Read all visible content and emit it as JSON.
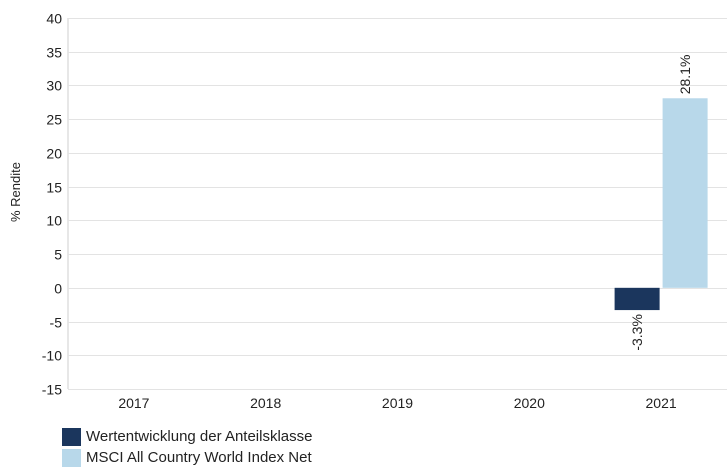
{
  "chart_data": {
    "type": "bar",
    "categories": [
      "2017",
      "2018",
      "2019",
      "2020",
      "2021"
    ],
    "series": [
      {
        "name": "Wertentwicklung der Anteilsklasse",
        "color": "#1b365d",
        "values": [
          null,
          null,
          null,
          null,
          -3.3
        ],
        "labels": [
          "",
          "",
          "",
          "",
          "-3.3%"
        ]
      },
      {
        "name": "MSCI All Country World Index Net",
        "color": "#b8d8ea",
        "values": [
          null,
          null,
          null,
          null,
          28.1
        ],
        "labels": [
          "",
          "",
          "",
          "",
          "28.1%"
        ]
      }
    ],
    "ylabel": "% Rendite",
    "ylim": [
      -15,
      40
    ],
    "yticks": [
      40,
      35,
      30,
      25,
      20,
      15,
      10,
      5,
      0,
      -5,
      -10,
      -15
    ],
    "grid": true,
    "legend_position": "bottom-left"
  }
}
